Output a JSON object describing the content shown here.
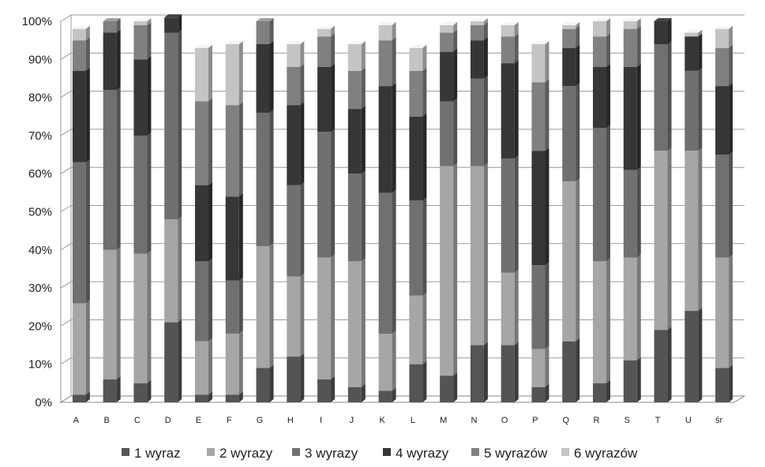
{
  "chart_data": {
    "type": "bar",
    "stacked": true,
    "percent": true,
    "categories": [
      "A",
      "B",
      "C",
      "D",
      "E",
      "F",
      "G",
      "H",
      "I",
      "J",
      "K",
      "L",
      "M",
      "N",
      "O",
      "P",
      "Q",
      "R",
      "S",
      "T",
      "U",
      "śr"
    ],
    "y_ticks": [
      "0%",
      "10%",
      "20%",
      "30%",
      "40%",
      "50%",
      "60%",
      "70%",
      "80%",
      "90%",
      "100%"
    ],
    "ylim": [
      0,
      100
    ],
    "grid": true,
    "legend_position": "bottom",
    "series": [
      {
        "name": "1 wyraz",
        "color": "#545454",
        "values": [
          2,
          6,
          5,
          21,
          2,
          2,
          9,
          12,
          6,
          4,
          3,
          10,
          7,
          15,
          15,
          4,
          16,
          5,
          11,
          19,
          24,
          9
        ]
      },
      {
        "name": "2 wyrazy",
        "color": "#a6a6a6",
        "values": [
          24,
          34,
          34,
          27,
          14,
          16,
          32,
          21,
          32,
          33,
          15,
          18,
          55,
          47,
          19,
          10,
          42,
          32,
          27,
          47,
          42,
          29
        ]
      },
      {
        "name": "3 wyrazy",
        "color": "#707070",
        "values": [
          37,
          42,
          31,
          49,
          21,
          14,
          35,
          24,
          33,
          23,
          37,
          25,
          17,
          23,
          30,
          22,
          25,
          35,
          23,
          28,
          21,
          27
        ]
      },
      {
        "name": "4 wyrazy",
        "color": "#363636",
        "values": [
          24,
          15,
          20,
          4,
          20,
          22,
          18,
          21,
          17,
          17,
          28,
          22,
          13,
          10,
          25,
          30,
          10,
          16,
          27,
          6,
          9,
          18
        ]
      },
      {
        "name": "5 wyrazów",
        "color": "#808080",
        "values": [
          8,
          3,
          9,
          0,
          22,
          24,
          6,
          10,
          8,
          10,
          12,
          12,
          5,
          4,
          7,
          18,
          5,
          8,
          10,
          0,
          0,
          10
        ]
      },
      {
        "name": "6 wyrazów",
        "color": "#c4c4c4",
        "values": [
          3,
          0,
          1,
          0,
          14,
          16,
          0,
          6,
          2,
          7,
          4,
          6,
          2,
          1,
          3,
          10,
          1,
          4,
          2,
          0,
          1,
          5
        ]
      }
    ]
  }
}
